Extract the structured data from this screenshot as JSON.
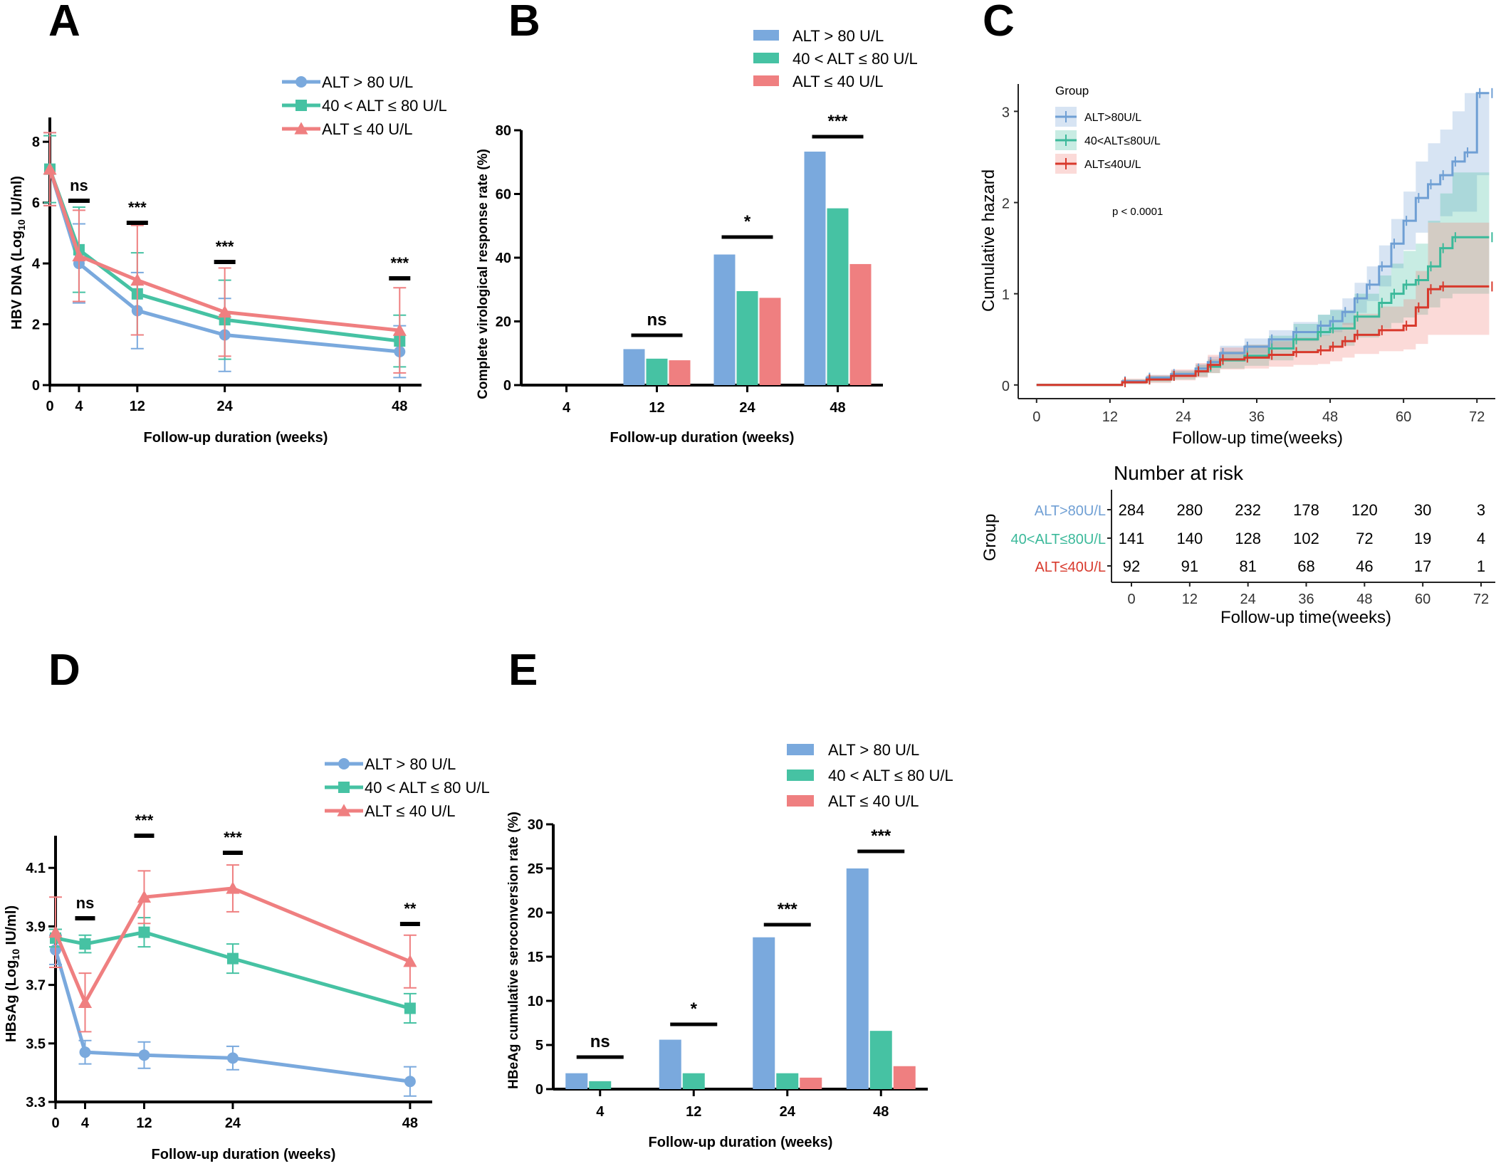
{
  "colors": {
    "blue": "#7aa9dd",
    "green": "#46c2a3",
    "red": "#ef7f80",
    "km_blue": "#6f9fd4",
    "km_green": "#3bb99a",
    "km_red": "#d8392c",
    "axis": "#000000"
  },
  "chart_data": [
    {
      "panel": "A",
      "type": "line",
      "xlabel": "Follow-up duration (weeks)",
      "ylabel_main": "HBV DNA (Log",
      "ylabel_sub": "10",
      "ylabel_tail": " IU/ml)",
      "x": [
        0,
        4,
        12,
        24,
        48
      ],
      "x_ticks": [
        "0",
        "4",
        "12",
        "24",
        "48"
      ],
      "y_ticks": [
        "0",
        "2",
        "4",
        "6",
        "8"
      ],
      "ylim": [
        0,
        8.8
      ],
      "legend": [
        "ALT > 80 U/L",
        "40 < ALT ≤ 80 U/L",
        "ALT ≤ 40 U/L"
      ],
      "series": [
        {
          "name": "ALT > 80 U/L",
          "values": [
            7.1,
            4.0,
            2.45,
            1.65,
            1.1
          ],
          "err": [
            1.2,
            1.3,
            1.25,
            1.2,
            0.85
          ]
        },
        {
          "name": "40 < ALT ≤ 80 U/L",
          "values": [
            7.1,
            4.45,
            3.0,
            2.15,
            1.45
          ],
          "err": [
            1.1,
            1.4,
            1.35,
            1.3,
            0.85
          ]
        },
        {
          "name": "ALT ≤ 40 U/L",
          "values": [
            7.1,
            4.25,
            3.45,
            2.4,
            1.8
          ],
          "err": [
            1.2,
            1.5,
            1.8,
            1.45,
            1.4
          ]
        }
      ],
      "annotations": [
        {
          "x": 4,
          "label": "ns"
        },
        {
          "x": 12,
          "label": "***"
        },
        {
          "x": 24,
          "label": "***"
        },
        {
          "x": 48,
          "label": "***"
        }
      ]
    },
    {
      "panel": "B",
      "type": "bar",
      "xlabel": "Follow-up duration (weeks)",
      "ylabel": "Complete virological response rate (%)",
      "categories": [
        "4",
        "12",
        "24",
        "48"
      ],
      "y_ticks": [
        "0",
        "20",
        "40",
        "60",
        "80"
      ],
      "ylim": [
        0,
        80
      ],
      "legend": [
        "ALT > 80 U/L",
        "40 < ALT ≤  80 U/L",
        "ALT ≤  40 U/L"
      ],
      "series": [
        {
          "name": "ALT > 80 U/L",
          "values": [
            0,
            11.3,
            41,
            73.3
          ]
        },
        {
          "name": "40 < ALT ≤ 80 U/L",
          "values": [
            0,
            8.3,
            29.5,
            55.5
          ]
        },
        {
          "name": "ALT ≤ 40 U/L",
          "values": [
            0,
            7.8,
            27.4,
            38
          ]
        }
      ],
      "annotations": [
        {
          "category": "12",
          "label": "ns"
        },
        {
          "category": "24",
          "label": "*"
        },
        {
          "category": "48",
          "label": "***"
        }
      ]
    },
    {
      "panel": "C",
      "type": "line",
      "subtype": "cumulative-hazard-step",
      "xlabel": "Follow-up time(weeks)",
      "ylabel": "Cumulative hazard",
      "x_ticks": [
        "0",
        "12",
        "24",
        "36",
        "48",
        "60",
        "72"
      ],
      "y_ticks": [
        "0",
        "1",
        "2",
        "3"
      ],
      "xlim": [
        -3,
        75
      ],
      "ylim": [
        -0.15,
        3.3
      ],
      "legend_title": "Group",
      "legend": [
        "ALT>80U/L",
        "40<ALT≤80U/L",
        "ALT≤40U/L"
      ],
      "pvalue": "p < 0.0001",
      "series": [
        {
          "name": "ALT>80U/L",
          "points": [
            [
              0,
              0
            ],
            [
              12,
              0
            ],
            [
              14,
              0.04
            ],
            [
              18,
              0.08
            ],
            [
              22,
              0.12
            ],
            [
              26,
              0.18
            ],
            [
              28,
              0.25
            ],
            [
              30,
              0.35
            ],
            [
              34,
              0.42
            ],
            [
              38,
              0.5
            ],
            [
              42,
              0.58
            ],
            [
              46,
              0.65
            ],
            [
              48,
              0.7
            ],
            [
              50,
              0.8
            ],
            [
              52,
              0.95
            ],
            [
              54,
              1.1
            ],
            [
              56,
              1.3
            ],
            [
              58,
              1.55
            ],
            [
              60,
              1.8
            ],
            [
              62,
              2.05
            ],
            [
              64,
              2.2
            ],
            [
              66,
              2.3
            ],
            [
              68,
              2.45
            ],
            [
              70,
              2.55
            ],
            [
              72,
              3.2
            ],
            [
              74,
              3.2
            ]
          ],
          "band": [
            [
              0,
              0,
              0
            ],
            [
              12,
              0,
              0
            ],
            [
              14,
              0.02,
              0.06
            ],
            [
              18,
              0.05,
              0.11
            ],
            [
              22,
              0.09,
              0.16
            ],
            [
              26,
              0.13,
              0.23
            ],
            [
              28,
              0.19,
              0.31
            ],
            [
              30,
              0.28,
              0.43
            ],
            [
              34,
              0.34,
              0.51
            ],
            [
              38,
              0.41,
              0.6
            ],
            [
              42,
              0.48,
              0.69
            ],
            [
              46,
              0.54,
              0.77
            ],
            [
              48,
              0.58,
              0.83
            ],
            [
              50,
              0.66,
              0.95
            ],
            [
              52,
              0.79,
              1.12
            ],
            [
              54,
              0.92,
              1.3
            ],
            [
              56,
              1.08,
              1.53
            ],
            [
              58,
              1.28,
              1.82
            ],
            [
              60,
              1.48,
              2.12
            ],
            [
              62,
              1.67,
              2.45
            ],
            [
              64,
              1.78,
              2.65
            ],
            [
              66,
              1.85,
              2.8
            ],
            [
              68,
              1.9,
              3.0
            ],
            [
              70,
              1.9,
              3.2
            ],
            [
              72,
              2.3,
              3.2
            ],
            [
              74,
              2.3,
              3.2
            ]
          ]
        },
        {
          "name": "40<ALT≤80U/L",
          "points": [
            [
              0,
              0
            ],
            [
              12,
              0
            ],
            [
              14,
              0.03
            ],
            [
              18,
              0.06
            ],
            [
              22,
              0.1
            ],
            [
              26,
              0.15
            ],
            [
              28,
              0.2
            ],
            [
              30,
              0.27
            ],
            [
              34,
              0.32
            ],
            [
              38,
              0.4
            ],
            [
              42,
              0.5
            ],
            [
              46,
              0.58
            ],
            [
              48,
              0.62
            ],
            [
              52,
              0.75
            ],
            [
              56,
              0.9
            ],
            [
              58,
              1.0
            ],
            [
              60,
              1.1
            ],
            [
              62,
              1.15
            ],
            [
              64,
              1.3
            ],
            [
              66,
              1.5
            ],
            [
              68,
              1.62
            ],
            [
              74,
              1.62
            ]
          ],
          "band": [
            [
              0,
              0,
              0
            ],
            [
              12,
              0,
              0
            ],
            [
              14,
              0.01,
              0.06
            ],
            [
              18,
              0.03,
              0.1
            ],
            [
              22,
              0.06,
              0.15
            ],
            [
              26,
              0.09,
              0.22
            ],
            [
              28,
              0.13,
              0.28
            ],
            [
              30,
              0.18,
              0.37
            ],
            [
              34,
              0.21,
              0.44
            ],
            [
              38,
              0.27,
              0.54
            ],
            [
              42,
              0.35,
              0.67
            ],
            [
              46,
              0.4,
              0.77
            ],
            [
              48,
              0.43,
              0.82
            ],
            [
              52,
              0.52,
              1.0
            ],
            [
              56,
              0.62,
              1.2
            ],
            [
              58,
              0.68,
              1.33
            ],
            [
              60,
              0.74,
              1.47
            ],
            [
              62,
              0.77,
              1.55
            ],
            [
              64,
              0.85,
              1.8
            ],
            [
              66,
              0.95,
              2.1
            ],
            [
              68,
              1.0,
              2.33
            ],
            [
              74,
              1.0,
              2.33
            ]
          ]
        },
        {
          "name": "ALT≤40U/L",
          "points": [
            [
              0,
              0
            ],
            [
              12,
              0
            ],
            [
              14,
              0.03
            ],
            [
              18,
              0.06
            ],
            [
              22,
              0.1
            ],
            [
              26,
              0.15
            ],
            [
              28,
              0.22
            ],
            [
              30,
              0.28
            ],
            [
              34,
              0.3
            ],
            [
              38,
              0.33
            ],
            [
              42,
              0.36
            ],
            [
              46,
              0.38
            ],
            [
              48,
              0.42
            ],
            [
              50,
              0.48
            ],
            [
              52,
              0.55
            ],
            [
              56,
              0.6
            ],
            [
              60,
              0.65
            ],
            [
              62,
              0.85
            ],
            [
              64,
              1.05
            ],
            [
              66,
              1.08
            ],
            [
              74,
              1.08
            ]
          ],
          "band": [
            [
              0,
              0,
              0
            ],
            [
              12,
              0,
              0
            ],
            [
              14,
              0.01,
              0.07
            ],
            [
              18,
              0.02,
              0.11
            ],
            [
              22,
              0.05,
              0.17
            ],
            [
              26,
              0.08,
              0.24
            ],
            [
              28,
              0.13,
              0.33
            ],
            [
              30,
              0.17,
              0.41
            ],
            [
              34,
              0.18,
              0.44
            ],
            [
              38,
              0.2,
              0.48
            ],
            [
              42,
              0.22,
              0.52
            ],
            [
              46,
              0.23,
              0.55
            ],
            [
              48,
              0.26,
              0.6
            ],
            [
              50,
              0.3,
              0.68
            ],
            [
              52,
              0.34,
              0.78
            ],
            [
              56,
              0.37,
              0.86
            ],
            [
              60,
              0.39,
              0.94
            ],
            [
              62,
              0.45,
              1.25
            ],
            [
              64,
              0.55,
              1.78
            ],
            [
              66,
              0.55,
              1.78
            ],
            [
              74,
              0.55,
              1.78
            ]
          ]
        }
      ]
    },
    {
      "panel": "C-risk",
      "type": "table",
      "title": "Number at risk",
      "ylabel": "Group",
      "xlabel": "Follow-up time(weeks)",
      "x_ticks": [
        "0",
        "12",
        "24",
        "36",
        "48",
        "60",
        "72"
      ],
      "rows": [
        {
          "name": "ALT>80U/L",
          "values": [
            "284",
            "280",
            "232",
            "178",
            "120",
            "30",
            "3"
          ]
        },
        {
          "name": "40<ALT≤80U/L",
          "values": [
            "141",
            "140",
            "128",
            "102",
            "72",
            "19",
            "4"
          ]
        },
        {
          "name": "ALT≤40U/L",
          "values": [
            "92",
            "91",
            "81",
            "68",
            "46",
            "17",
            "1"
          ]
        }
      ]
    },
    {
      "panel": "D",
      "type": "line",
      "xlabel": "Follow-up duration (weeks)",
      "ylabel_main": "HBsAg (Log",
      "ylabel_sub": "10",
      "ylabel_tail": " IU/ml)",
      "x": [
        0,
        4,
        12,
        24,
        48
      ],
      "x_ticks": [
        "0",
        "4",
        "12",
        "24",
        "48"
      ],
      "y_ticks": [
        "3.3",
        "3.5",
        "3.7",
        "3.9",
        "4.1"
      ],
      "ylim": [
        3.3,
        4.21
      ],
      "legend": [
        "ALT > 80 U/L",
        "40 < ALT ≤  80 U/L",
        "ALT ≤  40 U/L"
      ],
      "series": [
        {
          "name": "ALT > 80 U/L",
          "values": [
            3.82,
            3.47,
            3.46,
            3.45,
            3.37
          ],
          "err": [
            0.05,
            0.04,
            0.045,
            0.04,
            0.05
          ]
        },
        {
          "name": "40 < ALT ≤ 80 U/L",
          "values": [
            3.86,
            3.84,
            3.88,
            3.79,
            3.62
          ],
          "err": [
            0.03,
            0.03,
            0.05,
            0.05,
            0.05
          ]
        },
        {
          "name": "ALT ≤ 40 U/L",
          "values": [
            3.88,
            3.64,
            4.0,
            4.03,
            3.78
          ],
          "err": [
            0.12,
            0.1,
            0.09,
            0.08,
            0.09
          ]
        }
      ],
      "annotations": [
        {
          "x": 4,
          "label": "ns"
        },
        {
          "x": 12,
          "label": "***"
        },
        {
          "x": 24,
          "label": "***"
        },
        {
          "x": 48,
          "label": "**"
        }
      ]
    },
    {
      "panel": "E",
      "type": "bar",
      "xlabel": "Follow-up duration (weeks)",
      "ylabel": "HBeAg cumulative seroconversion rate (%)",
      "categories": [
        "4",
        "12",
        "24",
        "48"
      ],
      "y_ticks": [
        "0",
        "5",
        "10",
        "15",
        "20",
        "25",
        "30"
      ],
      "ylim": [
        0,
        30
      ],
      "legend": [
        "ALT > 80 U/L",
        "40 < ALT ≤  80 U/L",
        "ALT ≤  40 U/L"
      ],
      "series": [
        {
          "name": "ALT > 80 U/L",
          "values": [
            1.8,
            5.6,
            17.2,
            25.0
          ]
        },
        {
          "name": "40 < ALT ≤ 80 U/L",
          "values": [
            0.9,
            1.8,
            1.8,
            6.6
          ]
        },
        {
          "name": "ALT ≤ 40 U/L",
          "values": [
            0,
            0,
            1.3,
            2.6
          ]
        }
      ],
      "annotations": [
        {
          "category": "4",
          "label": "ns"
        },
        {
          "category": "12",
          "label": "*"
        },
        {
          "category": "24",
          "label": "***"
        },
        {
          "category": "48",
          "label": "***"
        }
      ]
    }
  ],
  "panel_letters": [
    "A",
    "B",
    "C",
    "D",
    "E"
  ]
}
